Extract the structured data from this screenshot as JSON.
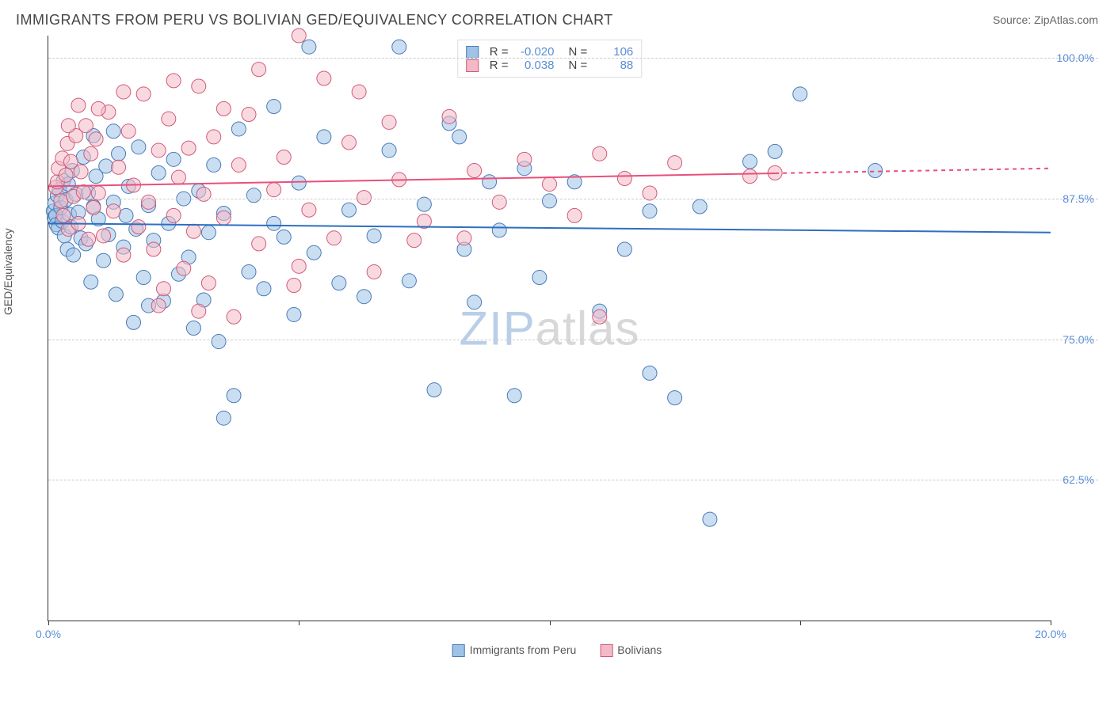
{
  "title": "IMMIGRANTS FROM PERU VS BOLIVIAN GED/EQUIVALENCY CORRELATION CHART",
  "source_prefix": "Source: ",
  "source_name": "ZipAtlas.com",
  "ylabel": "GED/Equivalency",
  "watermark_part1": "ZIP",
  "watermark_part2": "atlas",
  "chart": {
    "type": "scatter",
    "xlim": [
      0,
      20
    ],
    "ylim": [
      50,
      102
    ],
    "x_ticks": [
      0,
      5,
      10,
      15,
      20
    ],
    "x_tick_labels": [
      "0.0%",
      "",
      "",
      "",
      "20.0%"
    ],
    "y_ticks": [
      62.5,
      75.0,
      87.5,
      100.0
    ],
    "y_tick_labels": [
      "62.5%",
      "75.0%",
      "87.5%",
      "100.0%"
    ],
    "background_color": "#ffffff",
    "grid_color": "#cccccc",
    "axis_color": "#333333",
    "marker_radius": 9,
    "marker_opacity": 0.55,
    "series": [
      {
        "name": "Immigrants from Peru",
        "label": "Immigrants from Peru",
        "fill_color": "#9fc3e7",
        "stroke_color": "#4a7ab8",
        "r_value": "-0.020",
        "n_value": "106",
        "trend": {
          "y_start": 85.3,
          "y_end": 84.5,
          "color": "#2e6fbf",
          "width": 2
        },
        "points": [
          [
            0.1,
            86.4
          ],
          [
            0.12,
            85.8
          ],
          [
            0.13,
            87.1
          ],
          [
            0.15,
            86.0
          ],
          [
            0.16,
            85.2
          ],
          [
            0.18,
            87.8
          ],
          [
            0.2,
            84.9
          ],
          [
            0.22,
            88.3
          ],
          [
            0.25,
            86.7
          ],
          [
            0.28,
            85.5
          ],
          [
            0.3,
            89.1
          ],
          [
            0.32,
            84.2
          ],
          [
            0.35,
            87.4
          ],
          [
            0.38,
            83.0
          ],
          [
            0.4,
            88.8
          ],
          [
            0.42,
            86.1
          ],
          [
            0.45,
            85.0
          ],
          [
            0.48,
            90.0
          ],
          [
            0.5,
            82.5
          ],
          [
            0.55,
            87.9
          ],
          [
            0.6,
            86.3
          ],
          [
            0.65,
            84.0
          ],
          [
            0.7,
            91.2
          ],
          [
            0.75,
            83.5
          ],
          [
            0.8,
            88.0
          ],
          [
            0.85,
            80.1
          ],
          [
            0.9,
            86.8
          ],
          [
            0.95,
            89.5
          ],
          [
            1.0,
            85.7
          ],
          [
            1.1,
            82.0
          ],
          [
            1.15,
            90.4
          ],
          [
            1.2,
            84.3
          ],
          [
            1.3,
            87.2
          ],
          [
            1.35,
            79.0
          ],
          [
            1.4,
            91.5
          ],
          [
            1.5,
            83.2
          ],
          [
            1.55,
            86.0
          ],
          [
            1.6,
            88.6
          ],
          [
            1.7,
            76.5
          ],
          [
            1.75,
            84.8
          ],
          [
            1.8,
            92.1
          ],
          [
            1.9,
            80.5
          ],
          [
            2.0,
            86.9
          ],
          [
            2.1,
            83.8
          ],
          [
            2.2,
            89.8
          ],
          [
            2.3,
            78.4
          ],
          [
            2.4,
            85.3
          ],
          [
            2.5,
            91.0
          ],
          [
            2.6,
            80.8
          ],
          [
            2.7,
            87.5
          ],
          [
            2.8,
            82.3
          ],
          [
            2.9,
            76.0
          ],
          [
            3.0,
            88.2
          ],
          [
            3.1,
            78.5
          ],
          [
            3.2,
            84.5
          ],
          [
            3.3,
            90.5
          ],
          [
            3.4,
            74.8
          ],
          [
            3.5,
            86.2
          ],
          [
            3.7,
            70.0
          ],
          [
            3.8,
            93.7
          ],
          [
            4.0,
            81.0
          ],
          [
            4.1,
            87.8
          ],
          [
            4.3,
            79.5
          ],
          [
            4.5,
            95.7
          ],
          [
            4.7,
            84.1
          ],
          [
            4.9,
            77.2
          ],
          [
            5.0,
            88.9
          ],
          [
            5.3,
            82.7
          ],
          [
            5.5,
            93.0
          ],
          [
            5.8,
            80.0
          ],
          [
            6.0,
            86.5
          ],
          [
            6.3,
            78.8
          ],
          [
            6.5,
            84.2
          ],
          [
            6.8,
            91.8
          ],
          [
            7.0,
            101.0
          ],
          [
            7.2,
            80.2
          ],
          [
            7.5,
            87.0
          ],
          [
            7.7,
            70.5
          ],
          [
            8.0,
            94.2
          ],
          [
            8.3,
            83.0
          ],
          [
            8.5,
            78.3
          ],
          [
            8.8,
            89.0
          ],
          [
            9.0,
            84.7
          ],
          [
            9.3,
            70.0
          ],
          [
            9.5,
            90.2
          ],
          [
            9.8,
            80.5
          ],
          [
            10.0,
            87.3
          ],
          [
            10.5,
            89.0
          ],
          [
            11.0,
            77.5
          ],
          [
            11.5,
            83.0
          ],
          [
            12.0,
            86.4
          ],
          [
            12.0,
            72.0
          ],
          [
            12.5,
            69.8
          ],
          [
            13.0,
            86.8
          ],
          [
            13.2,
            59.0
          ],
          [
            14.0,
            90.8
          ],
          [
            14.5,
            91.7
          ],
          [
            15.0,
            96.8
          ],
          [
            16.5,
            90.0
          ],
          [
            2.0,
            78.0
          ],
          [
            1.3,
            93.5
          ],
          [
            0.9,
            93.1
          ],
          [
            3.5,
            68.0
          ],
          [
            4.5,
            85.3
          ],
          [
            5.2,
            101.0
          ],
          [
            8.2,
            93.0
          ]
        ]
      },
      {
        "name": "Bolivians",
        "label": "Bolivians",
        "fill_color": "#f4b9c7",
        "stroke_color": "#d05a7a",
        "r_value": "0.038",
        "n_value": "88",
        "trend": {
          "y_start": 88.6,
          "y_end": 90.2,
          "color": "#e94f7a",
          "width": 2,
          "dash_after_x": 14.5
        },
        "points": [
          [
            0.15,
            88.5
          ],
          [
            0.18,
            89.0
          ],
          [
            0.2,
            90.2
          ],
          [
            0.25,
            87.3
          ],
          [
            0.28,
            91.1
          ],
          [
            0.3,
            86.0
          ],
          [
            0.35,
            89.6
          ],
          [
            0.38,
            92.4
          ],
          [
            0.4,
            84.8
          ],
          [
            0.45,
            90.8
          ],
          [
            0.5,
            87.7
          ],
          [
            0.55,
            93.1
          ],
          [
            0.6,
            85.3
          ],
          [
            0.65,
            89.9
          ],
          [
            0.7,
            88.1
          ],
          [
            0.75,
            94.0
          ],
          [
            0.8,
            83.9
          ],
          [
            0.85,
            91.5
          ],
          [
            0.9,
            86.7
          ],
          [
            0.95,
            92.8
          ],
          [
            1.0,
            88.0
          ],
          [
            1.1,
            84.2
          ],
          [
            1.2,
            95.2
          ],
          [
            1.3,
            86.4
          ],
          [
            1.4,
            90.3
          ],
          [
            1.5,
            82.5
          ],
          [
            1.6,
            93.5
          ],
          [
            1.7,
            88.7
          ],
          [
            1.8,
            85.0
          ],
          [
            1.9,
            96.8
          ],
          [
            2.0,
            87.2
          ],
          [
            2.1,
            83.0
          ],
          [
            2.2,
            91.8
          ],
          [
            2.3,
            79.5
          ],
          [
            2.4,
            94.6
          ],
          [
            2.5,
            86.0
          ],
          [
            2.6,
            89.4
          ],
          [
            2.7,
            81.3
          ],
          [
            2.8,
            92.0
          ],
          [
            2.9,
            84.6
          ],
          [
            3.0,
            97.5
          ],
          [
            3.1,
            87.9
          ],
          [
            3.2,
            80.0
          ],
          [
            3.3,
            93.0
          ],
          [
            3.5,
            85.8
          ],
          [
            3.7,
            77.0
          ],
          [
            3.8,
            90.5
          ],
          [
            4.0,
            95.0
          ],
          [
            4.2,
            83.5
          ],
          [
            4.5,
            88.3
          ],
          [
            4.7,
            91.2
          ],
          [
            4.9,
            79.8
          ],
          [
            5.0,
            102.0
          ],
          [
            5.2,
            86.5
          ],
          [
            5.5,
            98.2
          ],
          [
            5.7,
            84.0
          ],
          [
            6.0,
            92.5
          ],
          [
            6.3,
            87.6
          ],
          [
            6.5,
            81.0
          ],
          [
            6.8,
            94.3
          ],
          [
            7.0,
            89.2
          ],
          [
            7.3,
            83.8
          ],
          [
            7.5,
            85.5
          ],
          [
            8.0,
            94.8
          ],
          [
            8.3,
            84.0
          ],
          [
            8.5,
            90.0
          ],
          [
            9.0,
            87.2
          ],
          [
            9.5,
            91.0
          ],
          [
            10.0,
            88.8
          ],
          [
            10.5,
            86.0
          ],
          [
            11.0,
            91.5
          ],
          [
            11.0,
            77.0
          ],
          [
            11.5,
            89.3
          ],
          [
            12.0,
            88.0
          ],
          [
            12.5,
            90.7
          ],
          [
            14.0,
            89.5
          ],
          [
            14.5,
            89.8
          ],
          [
            2.5,
            98.0
          ],
          [
            2.2,
            78.0
          ],
          [
            1.5,
            97.0
          ],
          [
            3.0,
            77.5
          ],
          [
            4.2,
            99.0
          ],
          [
            5.0,
            81.5
          ],
          [
            6.2,
            97.0
          ],
          [
            1.0,
            95.5
          ],
          [
            0.6,
            95.8
          ],
          [
            0.4,
            94.0
          ],
          [
            3.5,
            95.5
          ]
        ]
      }
    ],
    "stats_legend_labels": {
      "r": "R =",
      "n": "N ="
    }
  }
}
